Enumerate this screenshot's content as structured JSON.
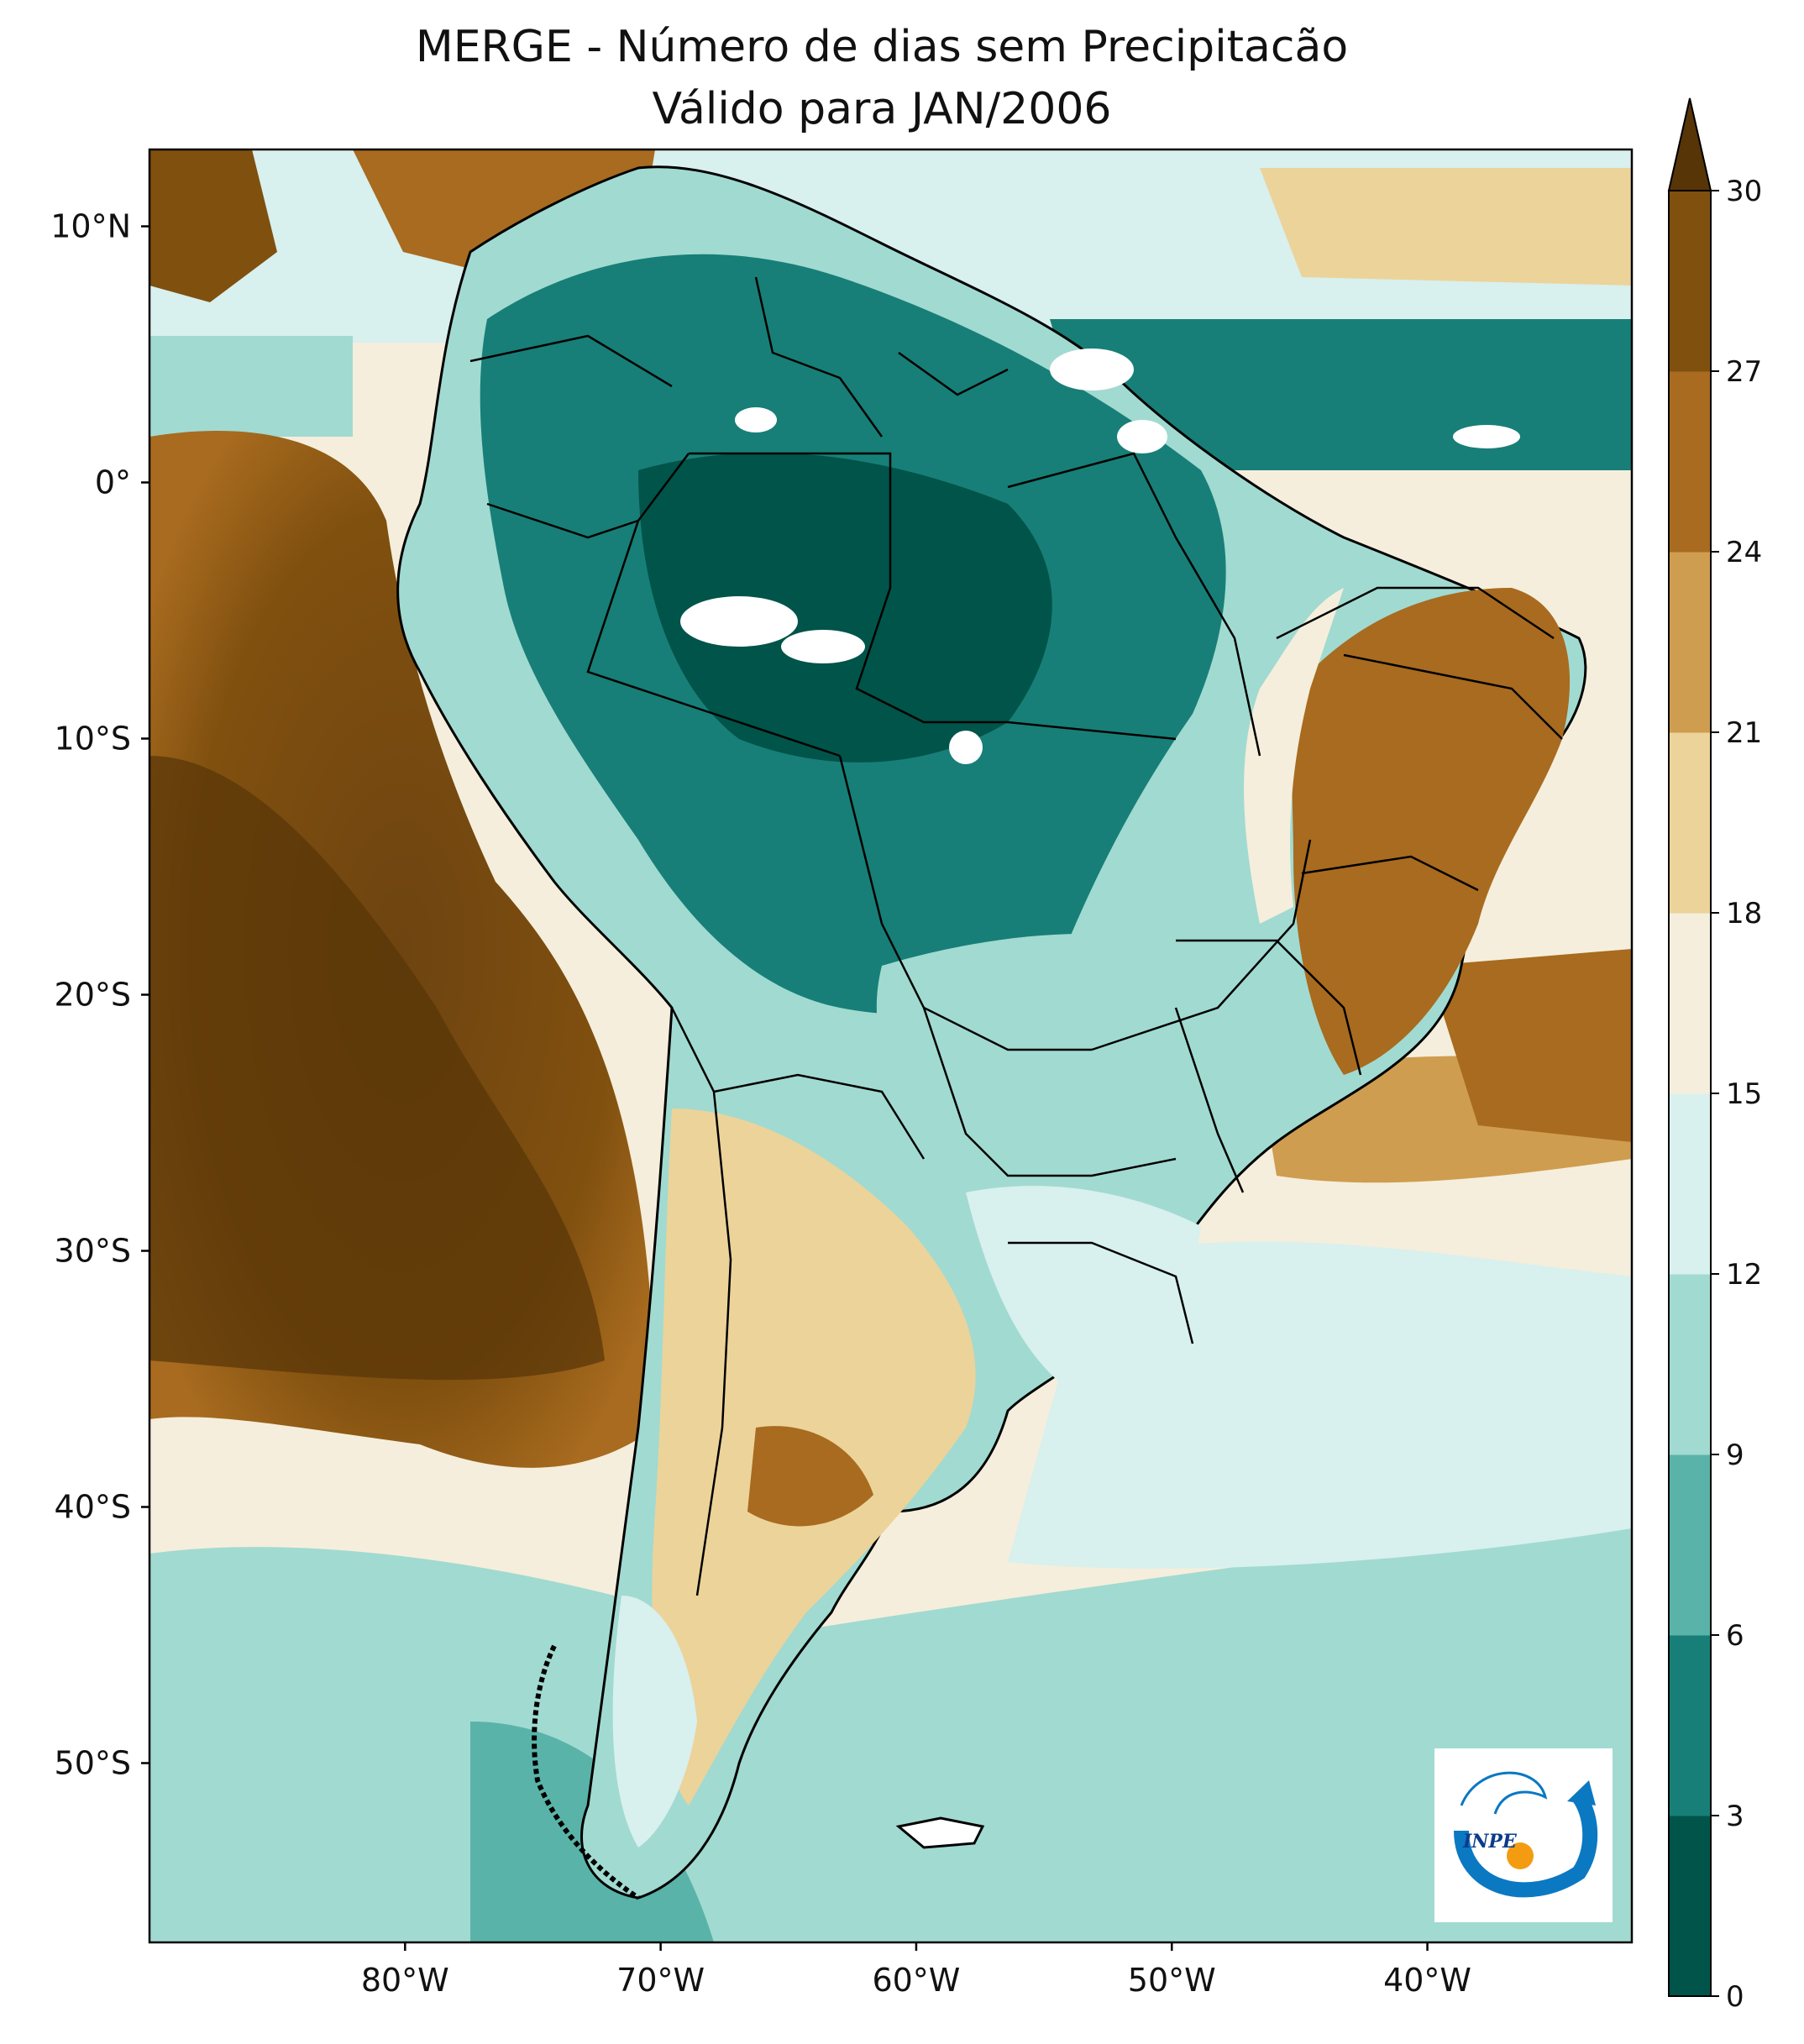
{
  "title": {
    "line1": "MERGE - Número de dias sem Precipitacão",
    "line2": "Válido para JAN/2006"
  },
  "map": {
    "extent": {
      "lon": [
        -90,
        -32
      ],
      "lat": [
        -57,
        13
      ]
    },
    "lat_ticks": [
      {
        "value": 10,
        "label": "10°N"
      },
      {
        "value": 0,
        "label": "0°"
      },
      {
        "value": -10,
        "label": "10°S"
      },
      {
        "value": -20,
        "label": "20°S"
      },
      {
        "value": -30,
        "label": "30°S"
      },
      {
        "value": -40,
        "label": "40°S"
      },
      {
        "value": -50,
        "label": "50°S"
      }
    ],
    "lon_ticks": [
      {
        "value": -80,
        "label": "80°W"
      },
      {
        "value": -70,
        "label": "70°W"
      },
      {
        "value": -60,
        "label": "60°W"
      },
      {
        "value": -50,
        "label": "50°W"
      },
      {
        "value": -40,
        "label": "40°W"
      }
    ]
  },
  "colorbar": {
    "levels": [
      0,
      3,
      6,
      9,
      12,
      15,
      18,
      21,
      24,
      27,
      30
    ],
    "labels": [
      "0",
      "3",
      "6",
      "9",
      "12",
      "15",
      "18",
      "21",
      "24",
      "27",
      "30"
    ],
    "colors": [
      "#01544a",
      "#177f77",
      "#5ab3a8",
      "#a1dad1",
      "#d8f0ee",
      "#f5eedc",
      "#ecd39a",
      "#cf9d4f",
      "#a86b1f",
      "#80500f"
    ],
    "extend_color": "#573507",
    "extend": "max"
  },
  "colors": {
    "ocean_west": "#80500f",
    "ocean_south": "#a1dad1",
    "amazon": "#177f77",
    "northeast": "#a86b1f",
    "pampa": "#ecd39a",
    "border": "#000000"
  },
  "logo": {
    "text": "INPE"
  }
}
